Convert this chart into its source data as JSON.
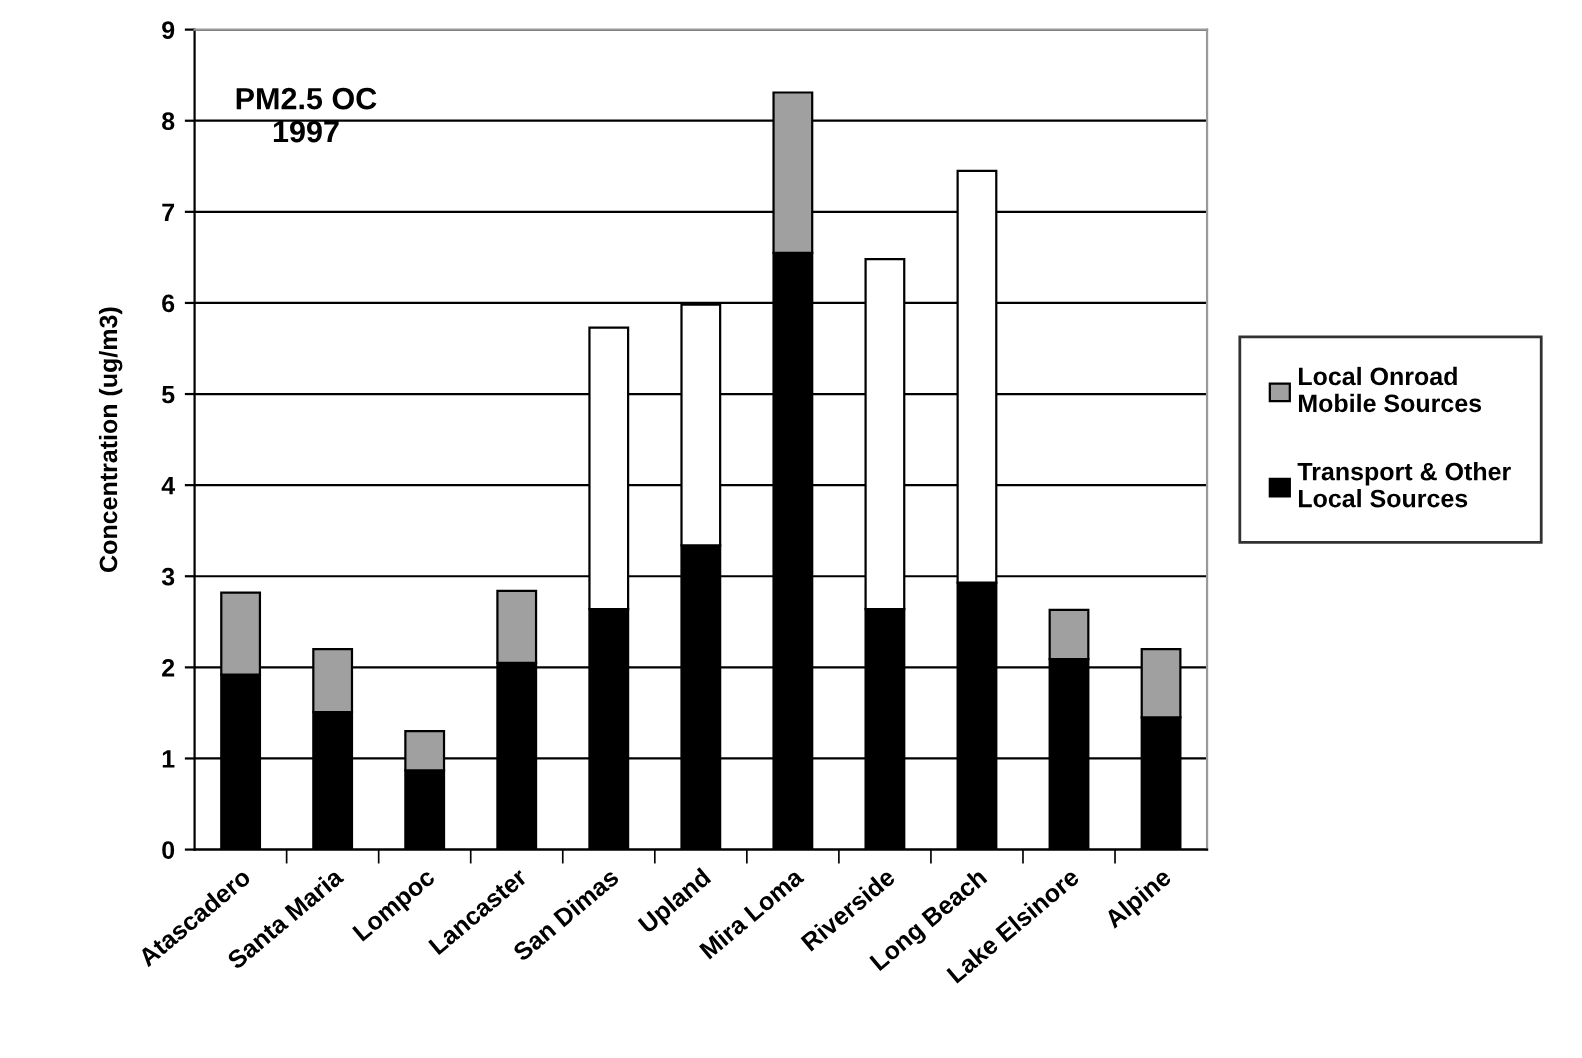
{
  "chart_data": {
    "type": "bar",
    "stacked": true,
    "ylabel": "Concentration (ug/m3)",
    "annotations": [
      "PM2.5 OC\n1997"
    ],
    "categories": [
      "Atascadero",
      "Santa Maria",
      "Lompoc",
      "Lancaster",
      "San Dimas",
      "Upland",
      "Mira Loma",
      "Riverside",
      "Long Beach",
      "Lake Elsinore",
      "Alpine"
    ],
    "series": [
      {
        "name": "Transport & Other Local Sources",
        "color": "#000000",
        "values": [
          1.92,
          1.51,
          0.87,
          2.05,
          2.64,
          3.34,
          6.55,
          2.64,
          2.93,
          2.09,
          1.45
        ]
      },
      {
        "name": "Local Onroad Mobile Sources",
        "color": "#a0a0a0",
        "values": [
          0.9,
          0.69,
          0.43,
          0.79,
          null,
          null,
          1.76,
          null,
          null,
          0.54,
          0.75
        ]
      },
      {
        "color": "#ffffff",
        "values": [
          null,
          null,
          null,
          null,
          3.09,
          2.64,
          null,
          3.84,
          4.52,
          null,
          null
        ]
      }
    ],
    "ylim": [
      0,
      9
    ],
    "yticks": [
      0,
      1,
      2,
      3,
      4,
      5,
      6,
      7,
      8,
      9
    ],
    "grid": "y",
    "legend": "right"
  }
}
